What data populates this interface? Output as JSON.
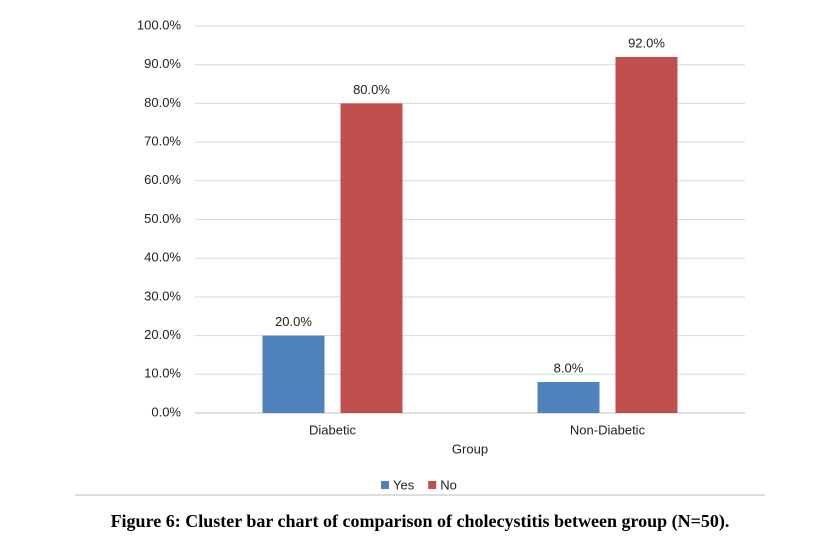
{
  "chart_data": {
    "type": "bar",
    "caption": "Figure 6: Cluster bar chart of comparison of cholecystitis between group (N=50).",
    "x_label": "Group",
    "categories": [
      "Diabetic",
      "Non-Diabetic"
    ],
    "series": [
      {
        "name": "Yes",
        "color": "#4f81bd",
        "values": [
          20,
          8
        ],
        "value_labels": [
          "20.0%",
          "8.0%"
        ]
      },
      {
        "name": "No",
        "color": "#c0504d",
        "values": [
          80,
          92
        ],
        "value_labels": [
          "80.0%",
          "92.0%"
        ]
      }
    ],
    "ylim": [
      0,
      100
    ],
    "yticks": [
      {
        "value": 0,
        "label": "0.0%"
      },
      {
        "value": 10,
        "label": "10.0%"
      },
      {
        "value": 20,
        "label": "20.0%"
      },
      {
        "value": 30,
        "label": "30.0%"
      },
      {
        "value": 40,
        "label": "40.0%"
      },
      {
        "value": 50,
        "label": "50.0%"
      },
      {
        "value": 60,
        "label": "60.0%"
      },
      {
        "value": 70,
        "label": "70.0%"
      },
      {
        "value": 80,
        "label": "80.0%"
      },
      {
        "value": 90,
        "label": "90.0%"
      },
      {
        "value": 100,
        "label": "100.0%"
      }
    ],
    "grid": true,
    "legend": "bottom"
  }
}
